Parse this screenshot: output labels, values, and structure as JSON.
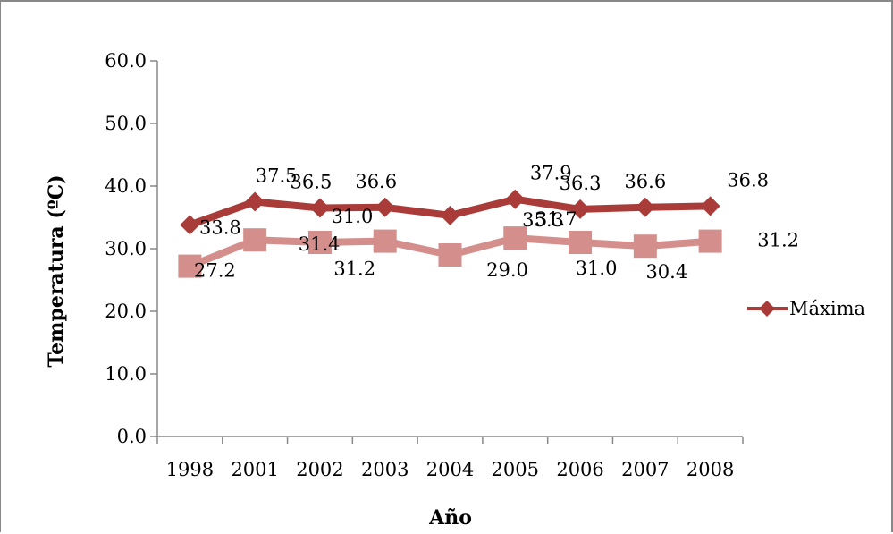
{
  "chart_data": {
    "type": "line",
    "title": "",
    "xlabel": "Año",
    "ylabel": "Temperatura (ºC)",
    "categories": [
      "1998",
      "2001",
      "2002",
      "2003",
      "2004",
      "2005",
      "2006",
      "2007",
      "2008"
    ],
    "ylim": [
      0,
      60
    ],
    "yticks": [
      "0.0",
      "10.0",
      "20.0",
      "30.0",
      "40.0",
      "50.0",
      "60.0"
    ],
    "grid": false,
    "legend": "right",
    "series": [
      {
        "name": "Máxima",
        "color": "#a93c38",
        "marker": "diamond",
        "values": [
          33.8,
          37.5,
          36.5,
          36.6,
          35.3,
          37.9,
          36.3,
          36.6,
          36.8
        ],
        "labels": [
          "33.8",
          "37.5",
          "36.5",
          "36.6",
          "35.3",
          "37.9",
          "36.3",
          "36.6",
          "36.8"
        ]
      },
      {
        "name": "",
        "color": "#d48f8c",
        "marker": "square",
        "values": [
          27.2,
          31.4,
          31.0,
          31.2,
          29.0,
          31.7,
          31.0,
          30.4,
          31.2
        ],
        "labels": [
          "27.2",
          "31.4",
          "31.0",
          "31.2",
          "29.0",
          "31.7",
          "31.0",
          "30.4",
          "31.2"
        ]
      }
    ]
  }
}
